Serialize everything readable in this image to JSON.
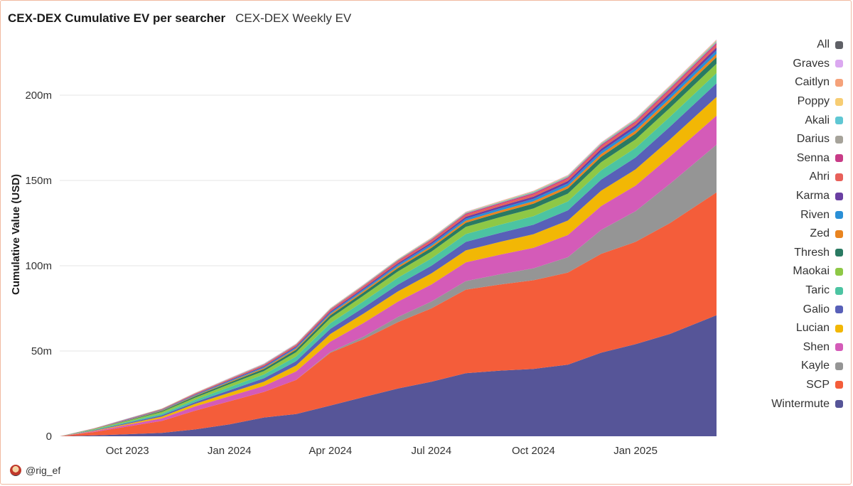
{
  "header": {
    "active_tab": "CEX-DEX Cumulative EV per searcher",
    "second_tab": "CEX-DEX Weekly EV"
  },
  "footer": {
    "handle": "@rig_ef"
  },
  "legend": [
    {
      "name": "All",
      "color": "#5f6066"
    },
    {
      "name": "Graves",
      "color": "#dba8f0"
    },
    {
      "name": "Caitlyn",
      "color": "#f5a27a"
    },
    {
      "name": "Poppy",
      "color": "#f7cd73"
    },
    {
      "name": "Akali",
      "color": "#5fc7d3"
    },
    {
      "name": "Darius",
      "color": "#a6a39a"
    },
    {
      "name": "Senna",
      "color": "#c83c87"
    },
    {
      "name": "Ahri",
      "color": "#e8605a"
    },
    {
      "name": "Karma",
      "color": "#6a3fa2"
    },
    {
      "name": "Riven",
      "color": "#2a8fd6"
    },
    {
      "name": "Zed",
      "color": "#e9841f"
    },
    {
      "name": "Thresh",
      "color": "#2a7a62"
    },
    {
      "name": "Maokai",
      "color": "#8ec846"
    },
    {
      "name": "Taric",
      "color": "#4cc4a2"
    },
    {
      "name": "Galio",
      "color": "#5860b8"
    },
    {
      "name": "Lucian",
      "color": "#f2b705"
    },
    {
      "name": "Shen",
      "color": "#d45bb8"
    },
    {
      "name": "Kayle",
      "color": "#959595"
    },
    {
      "name": "SCP",
      "color": "#f45d3a"
    },
    {
      "name": "Wintermute",
      "color": "#565598"
    }
  ],
  "chart_data": {
    "type": "area",
    "stacked": true,
    "ylabel": "Cumulative Value (USD)",
    "ylim": [
      0,
      235000000
    ],
    "yticks": [
      0,
      50000000,
      100000000,
      150000000,
      200000000
    ],
    "ytick_labels": [
      "0",
      "50m",
      "100m",
      "150m",
      "200m"
    ],
    "x": [
      "2023-08-01",
      "2023-09-01",
      "2023-10-01",
      "2023-11-01",
      "2023-12-01",
      "2024-01-01",
      "2024-02-01",
      "2024-03-01",
      "2024-04-01",
      "2024-05-01",
      "2024-06-01",
      "2024-07-01",
      "2024-08-01",
      "2024-09-01",
      "2024-10-01",
      "2024-11-01",
      "2024-12-01",
      "2025-01-01",
      "2025-02-01",
      "2025-03-15"
    ],
    "xtick_labels": [
      "Oct 2023",
      "Jan 2024",
      "Apr 2024",
      "Jul 2024",
      "Oct 2024",
      "Jan 2025"
    ],
    "xticks": [
      "2023-10-01",
      "2024-01-01",
      "2024-04-01",
      "2024-07-01",
      "2024-10-01",
      "2025-01-01"
    ],
    "grid": true,
    "legend_position": "right",
    "series": [
      {
        "name": "Wintermute",
        "values": [
          0,
          0.5,
          1.2,
          2.0,
          4.0,
          7.0,
          11.0,
          13.0,
          18.0,
          23.0,
          28.0,
          32.0,
          37.0,
          38.5,
          39.5,
          42.0,
          49.0,
          54.0,
          60.0,
          71.0
        ]
      },
      {
        "name": "SCP",
        "values": [
          0,
          2.0,
          4.5,
          7.0,
          11.0,
          13.5,
          15.0,
          20.0,
          31.0,
          34.0,
          39.0,
          43.0,
          49.0,
          50.5,
          52.0,
          54.0,
          58.0,
          60.0,
          65.0,
          72.0
        ]
      },
      {
        "name": "Kayle",
        "values": [
          0,
          0,
          0,
          0,
          0,
          0,
          0,
          0,
          0.5,
          1.5,
          3.0,
          4.0,
          5.0,
          6.0,
          7.0,
          9.0,
          14.0,
          18.0,
          23.0,
          28.0
        ]
      },
      {
        "name": "Shen",
        "values": [
          0,
          0.5,
          1.0,
          1.5,
          2.5,
          3.0,
          3.5,
          5.0,
          6.0,
          8.0,
          9.0,
          10.0,
          11.0,
          11.5,
          12.0,
          13.0,
          14.0,
          15.0,
          16.0,
          17.0
        ]
      },
      {
        "name": "Lucian",
        "values": [
          0,
          0.3,
          0.6,
          1.0,
          1.5,
          2.0,
          2.5,
          3.5,
          4.5,
          5.5,
          6.0,
          6.5,
          7.0,
          7.5,
          8.0,
          8.5,
          9.0,
          9.5,
          10.0,
          11.0
        ]
      },
      {
        "name": "Galio",
        "values": [
          0,
          0.3,
          0.5,
          0.8,
          1.0,
          1.5,
          2.0,
          2.5,
          3.0,
          3.5,
          4.0,
          4.5,
          5.0,
          5.3,
          5.6,
          6.0,
          6.5,
          7.0,
          7.5,
          8.0
        ]
      },
      {
        "name": "Taric",
        "values": [
          0,
          0.3,
          0.6,
          1.0,
          1.3,
          1.8,
          2.2,
          2.8,
          3.3,
          3.7,
          4.0,
          4.3,
          4.6,
          4.8,
          5.0,
          5.2,
          5.4,
          5.6,
          5.8,
          6.0
        ]
      },
      {
        "name": "Maokai",
        "values": [
          0,
          0.3,
          0.6,
          1.0,
          1.3,
          1.7,
          2.0,
          2.5,
          3.0,
          3.4,
          3.7,
          4.0,
          4.2,
          4.4,
          4.5,
          4.6,
          4.8,
          5.0,
          5.2,
          5.5
        ]
      },
      {
        "name": "Thresh",
        "values": [
          0,
          0.1,
          0.3,
          0.5,
          0.8,
          1.0,
          1.2,
          1.4,
          1.6,
          1.8,
          2.0,
          2.2,
          2.4,
          2.6,
          2.8,
          3.0,
          3.2,
          3.4,
          3.6,
          3.8
        ]
      },
      {
        "name": "Zed",
        "values": [
          0,
          0.1,
          0.2,
          0.3,
          0.4,
          0.5,
          0.6,
          0.7,
          0.8,
          0.9,
          1.0,
          1.1,
          1.2,
          1.3,
          1.4,
          1.5,
          1.6,
          1.7,
          1.8,
          2.0
        ]
      },
      {
        "name": "Riven",
        "values": [
          0,
          0.1,
          0.2,
          0.3,
          0.4,
          0.5,
          0.6,
          0.7,
          0.8,
          0.9,
          1.0,
          1.1,
          1.2,
          1.3,
          1.4,
          1.5,
          1.6,
          1.7,
          1.8,
          2.0
        ]
      },
      {
        "name": "Karma",
        "values": [
          0,
          0.1,
          0.2,
          0.2,
          0.3,
          0.4,
          0.5,
          0.6,
          0.7,
          0.8,
          0.9,
          1.0,
          1.1,
          1.2,
          1.3,
          1.4,
          1.5,
          1.6,
          1.7,
          1.8
        ]
      },
      {
        "name": "Ahri",
        "values": [
          0,
          0.1,
          0.2,
          0.3,
          0.4,
          0.5,
          0.6,
          0.7,
          0.8,
          0.9,
          1.0,
          1.1,
          1.2,
          1.2,
          1.3,
          1.3,
          1.4,
          1.4,
          1.5,
          1.5
        ]
      },
      {
        "name": "Senna",
        "values": [
          0,
          0,
          0.1,
          0.1,
          0.2,
          0.2,
          0.3,
          0.3,
          0.4,
          0.4,
          0.5,
          0.5,
          0.6,
          0.6,
          0.7,
          0.7,
          0.8,
          0.8,
          0.9,
          1.0
        ]
      },
      {
        "name": "Darius",
        "values": [
          0,
          0,
          0.1,
          0.1,
          0.1,
          0.2,
          0.2,
          0.2,
          0.3,
          0.3,
          0.3,
          0.4,
          0.4,
          0.4,
          0.5,
          0.5,
          0.5,
          0.6,
          0.6,
          0.7
        ]
      },
      {
        "name": "Akali",
        "values": [
          0,
          0,
          0.1,
          0.1,
          0.1,
          0.1,
          0.2,
          0.2,
          0.2,
          0.2,
          0.3,
          0.3,
          0.3,
          0.3,
          0.4,
          0.4,
          0.4,
          0.5,
          0.5,
          0.5
        ]
      },
      {
        "name": "Poppy",
        "values": [
          0,
          0,
          0,
          0.1,
          0.1,
          0.1,
          0.1,
          0.1,
          0.2,
          0.2,
          0.2,
          0.2,
          0.2,
          0.3,
          0.3,
          0.3,
          0.3,
          0.3,
          0.4,
          0.4
        ]
      },
      {
        "name": "Caitlyn",
        "values": [
          0,
          0,
          0,
          0,
          0.1,
          0.1,
          0.1,
          0.1,
          0.1,
          0.1,
          0.1,
          0.2,
          0.2,
          0.2,
          0.2,
          0.2,
          0.2,
          0.2,
          0.3,
          0.3
        ]
      },
      {
        "name": "Graves",
        "values": [
          0,
          0,
          0,
          0,
          0,
          0.1,
          0.1,
          0.1,
          0.1,
          0.1,
          0.1,
          0.1,
          0.1,
          0.1,
          0.1,
          0.2,
          0.2,
          0.2,
          0.2,
          0.2
        ]
      }
    ],
    "value_unit_scale": 1000000
  }
}
